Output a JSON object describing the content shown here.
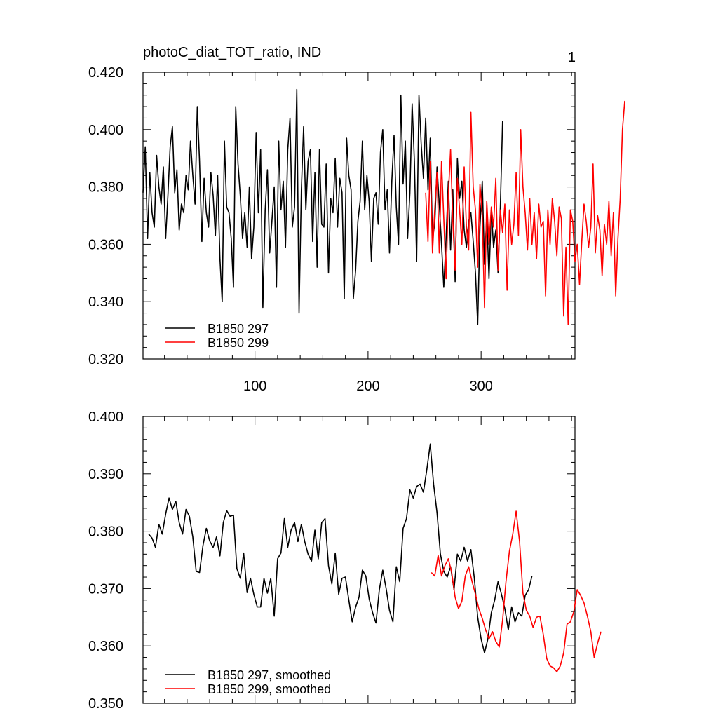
{
  "figure": {
    "title": "photoC_diat_TOT_ratio, IND",
    "panel_id": "1"
  },
  "chart_data": [
    {
      "type": "line",
      "title": "photoC_diat_TOT_ratio, IND",
      "xlim": [
        1,
        383
      ],
      "ylim": [
        0.32,
        0.42
      ],
      "xticks": [
        100,
        200,
        300
      ],
      "xtick_labels": [
        "100",
        "200",
        "300"
      ],
      "yticks": [
        0.32,
        0.34,
        0.36,
        0.38,
        0.4,
        0.42
      ],
      "ytick_labels": [
        "0.320",
        "0.340",
        "0.360",
        "0.380",
        "0.400",
        "0.420"
      ],
      "legend_position": "bottom-left",
      "series": [
        {
          "name": "B1850 297",
          "color": "#000000",
          "x_start": 1,
          "x_step": 2,
          "values": [
            0.378,
            0.394,
            0.362,
            0.385,
            0.371,
            0.366,
            0.391,
            0.38,
            0.374,
            0.387,
            0.362,
            0.377,
            0.394,
            0.401,
            0.378,
            0.386,
            0.365,
            0.374,
            0.371,
            0.384,
            0.379,
            0.396,
            0.384,
            0.374,
            0.408,
            0.389,
            0.361,
            0.383,
            0.371,
            0.366,
            0.385,
            0.377,
            0.363,
            0.384,
            0.355,
            0.34,
            0.396,
            0.373,
            0.371,
            0.362,
            0.345,
            0.408,
            0.388,
            0.377,
            0.362,
            0.371,
            0.359,
            0.38,
            0.355,
            0.366,
            0.399,
            0.371,
            0.393,
            0.338,
            0.372,
            0.386,
            0.357,
            0.368,
            0.38,
            0.345,
            0.396,
            0.372,
            0.382,
            0.359,
            0.393,
            0.404,
            0.366,
            0.373,
            0.414,
            0.336,
            0.379,
            0.401,
            0.372,
            0.389,
            0.393,
            0.361,
            0.385,
            0.352,
            0.393,
            0.367,
            0.366,
            0.388,
            0.35,
            0.376,
            0.371,
            0.39,
            0.366,
            0.383,
            0.378,
            0.341,
            0.397,
            0.384,
            0.379,
            0.341,
            0.351,
            0.368,
            0.375,
            0.396,
            0.372,
            0.384,
            0.375,
            0.354,
            0.376,
            0.378,
            0.367,
            0.392,
            0.4,
            0.372,
            0.379,
            0.357,
            0.382,
            0.398,
            0.373,
            0.36,
            0.412,
            0.381,
            0.396,
            0.362,
            0.378,
            0.409,
            0.389,
            0.354,
            0.412,
            0.395,
            0.383,
            0.404,
            0.379,
            0.397,
            0.362,
            0.367,
            0.387,
            0.374,
            0.36,
            0.345,
            0.362,
            0.382,
            0.358,
            0.379,
            0.347,
            0.39,
            0.376,
            0.382,
            0.365,
            0.359,
            0.368,
            0.371,
            0.361,
            0.35,
            0.332,
            0.366,
            0.382,
            0.353,
            0.37,
            0.348,
            0.372,
            0.359,
            0.365,
            0.35,
            0.373,
            0.403
          ]
        },
        {
          "name": "B1850 299",
          "color": "#ff0000",
          "x_start": 251,
          "x_step": 2,
          "values": [
            0.378,
            0.361,
            0.389,
            0.357,
            0.372,
            0.385,
            0.357,
            0.389,
            0.369,
            0.348,
            0.377,
            0.393,
            0.368,
            0.351,
            0.383,
            0.372,
            0.36,
            0.387,
            0.366,
            0.358,
            0.406,
            0.38,
            0.372,
            0.352,
            0.381,
            0.37,
            0.338,
            0.375,
            0.36,
            0.373,
            0.366,
            0.383,
            0.351,
            0.372,
            0.364,
            0.374,
            0.344,
            0.372,
            0.36,
            0.367,
            0.385,
            0.363,
            0.4,
            0.38,
            0.371,
            0.358,
            0.376,
            0.36,
            0.371,
            0.355,
            0.374,
            0.366,
            0.368,
            0.342,
            0.372,
            0.36,
            0.376,
            0.368,
            0.356,
            0.373,
            0.369,
            0.335,
            0.359,
            0.332,
            0.372,
            0.368,
            0.354,
            0.36,
            0.346,
            0.361,
            0.374,
            0.368,
            0.359,
            0.366,
            0.388,
            0.357,
            0.37,
            0.365,
            0.349,
            0.367,
            0.36,
            0.375,
            0.356,
            0.371,
            0.342,
            0.362,
            0.376,
            0.4,
            0.41
          ]
        }
      ]
    },
    {
      "type": "line",
      "title": "",
      "xlim": [
        1,
        383
      ],
      "ylim": [
        0.35,
        0.4
      ],
      "xticks": [
        100,
        200,
        300
      ],
      "xtick_labels": [],
      "yticks": [
        0.35,
        0.36,
        0.37,
        0.38,
        0.39,
        0.4
      ],
      "ytick_labels": [
        "0.350",
        "0.360",
        "0.370",
        "0.380",
        "0.390",
        "0.400"
      ],
      "legend_position": "bottom-left",
      "series": [
        {
          "name": "B1850 297, smoothed",
          "color": "#000000",
          "x_start": 6,
          "x_step": 3,
          "values": [
            0.3795,
            0.3788,
            0.3772,
            0.3812,
            0.3795,
            0.383,
            0.3858,
            0.3838,
            0.3852,
            0.3815,
            0.3795,
            0.3838,
            0.3826,
            0.379,
            0.373,
            0.3728,
            0.3775,
            0.3805,
            0.3783,
            0.3772,
            0.379,
            0.3757,
            0.3815,
            0.3836,
            0.3826,
            0.3828,
            0.3735,
            0.3718,
            0.3762,
            0.3693,
            0.3718,
            0.369,
            0.3668,
            0.3668,
            0.3718,
            0.3692,
            0.3718,
            0.3652,
            0.3752,
            0.3762,
            0.3822,
            0.3772,
            0.3802,
            0.3815,
            0.3782,
            0.3812,
            0.3782,
            0.376,
            0.3748,
            0.3802,
            0.3752,
            0.3815,
            0.3822,
            0.374,
            0.3708,
            0.3762,
            0.369,
            0.3718,
            0.372,
            0.368,
            0.3642,
            0.3668,
            0.3685,
            0.3732,
            0.3722,
            0.3682,
            0.3658,
            0.364,
            0.3698,
            0.3732,
            0.37,
            0.3662,
            0.3642,
            0.3738,
            0.3712,
            0.3805,
            0.3822,
            0.3872,
            0.3858,
            0.3878,
            0.3882,
            0.3868,
            0.3908,
            0.3952,
            0.3882,
            0.3832,
            0.376,
            0.373,
            0.372,
            0.3738,
            0.3698,
            0.376,
            0.3748,
            0.3772,
            0.3748,
            0.3768,
            0.3718,
            0.365,
            0.3612,
            0.3588,
            0.3612,
            0.3658,
            0.368,
            0.3712,
            0.369,
            0.3665,
            0.3628,
            0.3668,
            0.3642,
            0.3658,
            0.3652,
            0.3688,
            0.3698,
            0.3722
          ]
        },
        {
          "name": "B1850 299, smoothed",
          "color": "#ff0000",
          "x_start": 256,
          "x_step": 3,
          "values": [
            0.3728,
            0.3722,
            0.3758,
            0.3722,
            0.374,
            0.3752,
            0.3728,
            0.3685,
            0.3665,
            0.3678,
            0.3722,
            0.3738,
            0.3712,
            0.369,
            0.3665,
            0.3648,
            0.3628,
            0.3612,
            0.3625,
            0.3608,
            0.3598,
            0.3645,
            0.3712,
            0.3765,
            0.3795,
            0.3835,
            0.3782,
            0.3692,
            0.3662,
            0.3652,
            0.3632,
            0.365,
            0.3652,
            0.362,
            0.3578,
            0.3565,
            0.3562,
            0.3555,
            0.3565,
            0.3588,
            0.3638,
            0.3642,
            0.366,
            0.3698,
            0.3688,
            0.3675,
            0.3652,
            0.3625,
            0.358,
            0.3605,
            0.3625
          ]
        }
      ]
    }
  ]
}
